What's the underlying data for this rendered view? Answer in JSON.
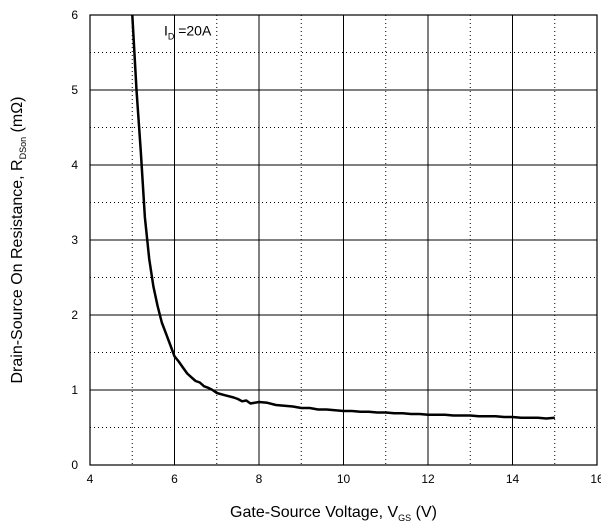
{
  "chart_data": {
    "type": "line",
    "xlabel": {
      "main": "Gate-Source Voltage, V",
      "sub": "GS",
      "unit": " (V)"
    },
    "ylabel": {
      "main": "Drain-Source On Resistance, R",
      "sub": "DSon",
      "unit": "  (mΩ)"
    },
    "xlim": [
      4,
      16
    ],
    "ylim": [
      0,
      6
    ],
    "x_ticks": [
      4,
      6,
      8,
      10,
      12,
      14,
      16
    ],
    "x_tick_labels": [
      "4",
      "6",
      "8",
      "10",
      "12",
      "14",
      "16"
    ],
    "y_ticks": [
      0,
      1,
      2,
      3,
      4,
      5,
      6
    ],
    "y_tick_labels": [
      "0",
      "1",
      "2",
      "3",
      "4",
      "5",
      "6"
    ],
    "grid": {
      "major": "solid",
      "minor": "dotted"
    },
    "annotation": {
      "main": "I",
      "sub": "D",
      "rest": " =20A"
    },
    "series": [
      {
        "color": "#000000",
        "x": [
          5.0,
          5.05,
          5.1,
          5.2,
          5.3,
          5.4,
          5.5,
          5.6,
          5.7,
          5.8,
          5.9,
          6.0,
          6.1,
          6.2,
          6.3,
          6.4,
          6.5,
          6.6,
          6.7,
          6.8,
          6.9,
          7.0,
          7.2,
          7.4,
          7.5,
          7.6,
          7.7,
          7.8,
          8.0,
          8.2,
          8.4,
          8.6,
          8.8,
          9.0,
          9.2,
          9.4,
          9.6,
          9.8,
          10.0,
          10.2,
          10.4,
          10.6,
          10.8,
          11.0,
          11.2,
          11.4,
          11.6,
          11.8,
          12.0,
          12.2,
          12.4,
          12.6,
          12.8,
          13.0,
          13.2,
          13.4,
          13.6,
          13.8,
          14.0,
          14.2,
          14.4,
          14.6,
          14.8,
          15.0
        ],
        "y": [
          6.0,
          5.5,
          5.0,
          4.2,
          3.3,
          2.75,
          2.38,
          2.12,
          1.9,
          1.75,
          1.6,
          1.45,
          1.38,
          1.3,
          1.22,
          1.17,
          1.12,
          1.1,
          1.05,
          1.03,
          1.0,
          0.96,
          0.93,
          0.9,
          0.88,
          0.85,
          0.86,
          0.82,
          0.84,
          0.83,
          0.8,
          0.79,
          0.78,
          0.76,
          0.76,
          0.74,
          0.74,
          0.73,
          0.72,
          0.72,
          0.71,
          0.71,
          0.7,
          0.7,
          0.69,
          0.69,
          0.68,
          0.68,
          0.67,
          0.67,
          0.67,
          0.66,
          0.66,
          0.66,
          0.65,
          0.65,
          0.65,
          0.64,
          0.64,
          0.63,
          0.63,
          0.63,
          0.62,
          0.63
        ]
      }
    ]
  }
}
